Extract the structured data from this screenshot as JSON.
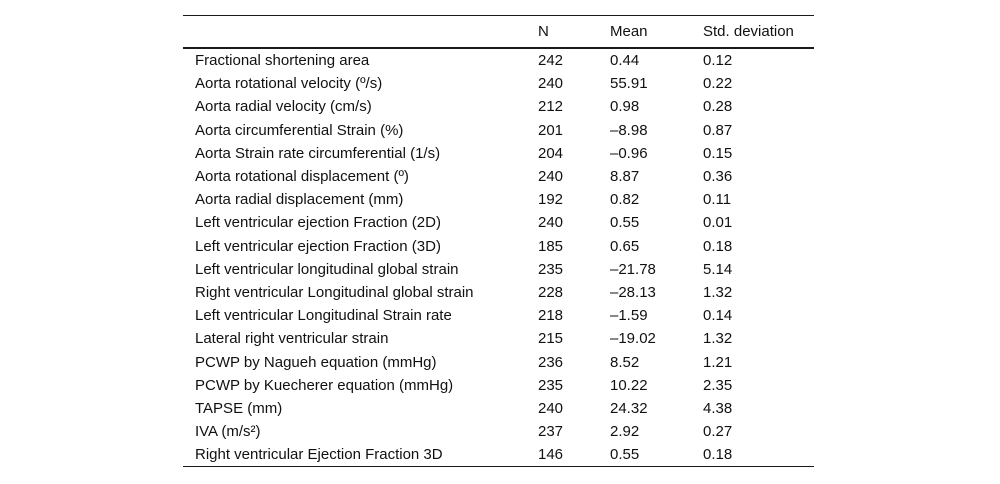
{
  "table": {
    "columns": [
      "",
      "N",
      "Mean",
      "Std. deviation"
    ],
    "rows": [
      [
        "Fractional shortening area",
        "242",
        "0.44",
        "0.12"
      ],
      [
        "Aorta rotational velocity (º/s)",
        "240",
        "55.91",
        "0.22"
      ],
      [
        "Aorta radial velocity (cm/s)",
        "212",
        "0.98",
        "0.28"
      ],
      [
        "Aorta circumferential Strain (%)",
        "201",
        "–8.98",
        "0.87"
      ],
      [
        "Aorta Strain rate circumferential (1/s)",
        "204",
        "–0.96",
        "0.15"
      ],
      [
        "Aorta rotational displacement (º)",
        "240",
        "8.87",
        "0.36"
      ],
      [
        "Aorta radial displacement (mm)",
        "192",
        "0.82",
        "0.11"
      ],
      [
        "Left ventricular ejection Fraction (2D)",
        "240",
        "0.55",
        "0.01"
      ],
      [
        "Left ventricular ejection Fraction (3D)",
        "185",
        "0.65",
        "0.18"
      ],
      [
        "Left ventricular longitudinal global strain",
        "235",
        "–21.78",
        "5.14"
      ],
      [
        "Right ventricular Longitudinal global strain",
        "228",
        "–28.13",
        "1.32"
      ],
      [
        "Left ventricular Longitudinal Strain rate",
        "218",
        "–1.59",
        "0.14"
      ],
      [
        "Lateral right ventricular strain",
        "215",
        "–19.02",
        "1.32"
      ],
      [
        "PCWP by Nagueh equation (mmHg)",
        "236",
        "8.52",
        "1.21"
      ],
      [
        "PCWP by Kuecherer equation (mmHg)",
        "235",
        "10.22",
        "2.35"
      ],
      [
        "TAPSE (mm)",
        "240",
        "24.32",
        "4.38"
      ],
      [
        "IVA (m/s²)",
        "237",
        "2.92",
        "0.27"
      ],
      [
        "Right ventricular Ejection Fraction 3D",
        "146",
        "0.55",
        "0.18"
      ]
    ],
    "text_color": "#111111",
    "rule_color": "#1a1a1a",
    "background_color": "#ffffff"
  }
}
